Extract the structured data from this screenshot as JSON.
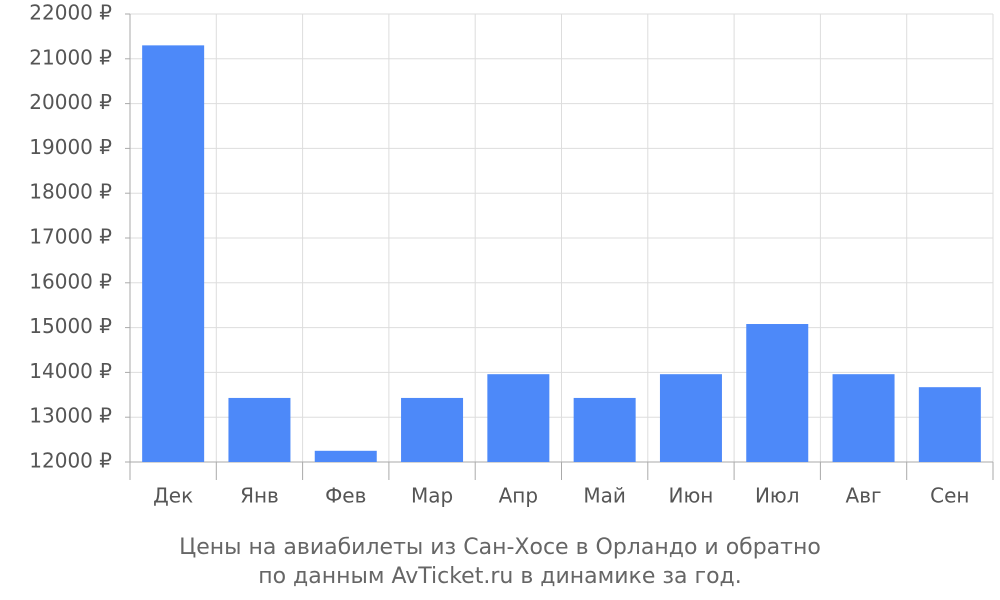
{
  "chart_data": {
    "type": "bar",
    "title": [
      "Цены на авиабилеты из Сан-Хосе в Орландо и обратно",
      "по данным AvTicket.ru в динамике за год."
    ],
    "categories": [
      "Дек",
      "Янв",
      "Фев",
      "Мар",
      "Апр",
      "Май",
      "Июн",
      "Июл",
      "Авг",
      "Сен"
    ],
    "values": [
      21300,
      13430,
      12250,
      13430,
      13960,
      13430,
      13960,
      15080,
      13960,
      13670
    ],
    "color": "#4d89f9",
    "ylim": [
      12000,
      22000
    ],
    "yticks": [
      {
        "value": 12000,
        "label": "12000 ₽"
      },
      {
        "value": 13000,
        "label": "13000 ₽"
      },
      {
        "value": 14000,
        "label": "14000 ₽"
      },
      {
        "value": 15000,
        "label": "15000 ₽"
      },
      {
        "value": 16000,
        "label": "16000 ₽"
      },
      {
        "value": 17000,
        "label": "17000 ₽"
      },
      {
        "value": 18000,
        "label": "18000 ₽"
      },
      {
        "value": 19000,
        "label": "19000 ₽"
      },
      {
        "value": 20000,
        "label": "20000 ₽"
      },
      {
        "value": 21000,
        "label": "21000 ₽"
      },
      {
        "value": 22000,
        "label": "22000 ₽"
      }
    ],
    "grid": true
  }
}
